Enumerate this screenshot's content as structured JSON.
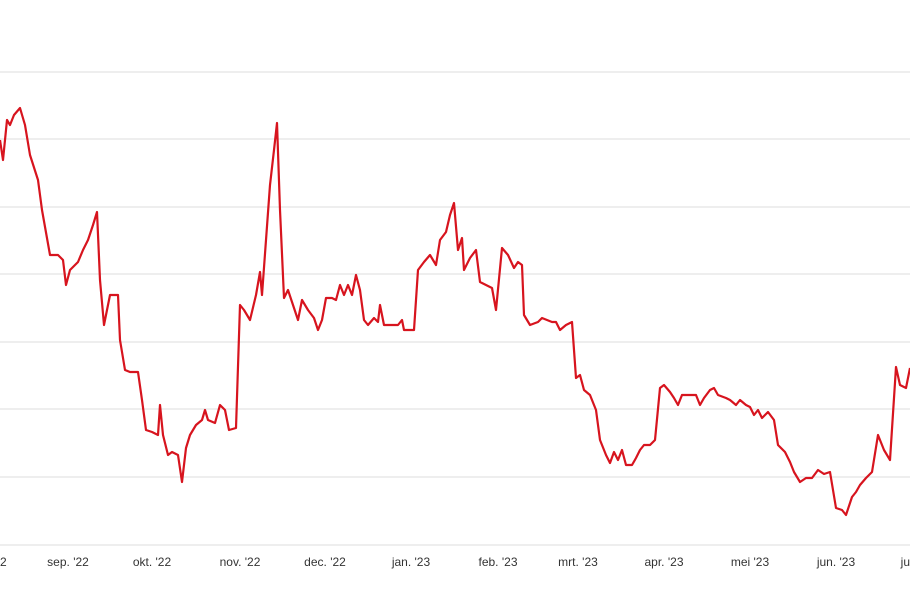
{
  "chart_data": {
    "type": "line",
    "x": [
      0,
      3,
      7,
      10,
      14,
      20,
      25,
      30,
      38,
      42,
      50,
      58,
      63,
      66,
      70,
      78,
      83,
      88,
      93,
      97,
      100,
      104,
      110,
      118,
      120,
      125,
      130,
      138,
      142,
      146,
      152,
      158,
      160,
      163,
      168,
      172,
      178,
      182,
      186,
      190,
      196,
      202,
      205,
      208,
      215,
      220,
      225,
      229,
      236,
      240,
      244,
      250,
      256,
      260,
      262,
      266,
      270,
      274,
      277,
      280,
      284,
      288,
      293,
      298,
      302,
      308,
      314,
      318,
      322,
      326,
      332,
      336,
      340,
      344,
      348,
      352,
      356,
      360,
      364,
      368,
      374,
      378,
      380,
      384,
      390,
      398,
      402,
      404,
      414,
      418,
      424,
      430,
      436,
      440,
      446,
      450,
      454,
      458,
      462,
      464,
      470,
      476,
      480,
      486,
      492,
      496,
      502,
      508,
      514,
      518,
      522,
      524,
      530,
      538,
      542,
      552,
      556,
      560,
      566,
      572,
      576,
      580,
      584,
      590,
      596,
      600,
      606,
      610,
      614,
      618,
      622,
      626,
      632,
      636,
      640,
      644,
      650,
      655,
      660,
      664,
      670,
      674,
      678,
      682,
      692,
      696,
      700,
      704,
      710,
      714,
      718,
      726,
      730,
      736,
      740,
      746,
      750,
      754,
      758,
      762,
      768,
      774,
      778,
      785,
      790,
      794,
      800,
      806,
      812,
      818,
      824,
      830,
      836,
      842,
      846,
      852,
      856,
      860,
      866,
      872,
      878,
      884,
      890,
      896,
      900,
      906,
      910
    ],
    "series": [
      {
        "color": "#d7141e",
        "values": [
          405,
          385,
          425,
          420,
          430,
          437,
          420,
          390,
          365,
          335,
          290,
          290,
          285,
          260,
          275,
          283,
          295,
          305,
          320,
          333,
          265,
          220,
          250,
          250,
          205,
          175,
          173,
          173,
          145,
          115,
          113,
          110,
          140,
          110,
          90,
          93,
          90,
          63,
          97,
          110,
          120,
          125,
          135,
          125,
          122,
          140,
          135,
          115,
          117,
          240,
          235,
          225,
          250,
          273,
          250,
          305,
          360,
          395,
          422,
          335,
          247,
          255,
          240,
          225,
          245,
          235,
          227,
          215,
          225,
          247,
          247,
          245,
          260,
          250,
          260,
          250,
          270,
          255,
          225,
          220,
          227,
          223,
          240,
          220,
          220,
          220,
          225,
          215,
          215,
          275,
          283,
          290,
          280,
          305,
          313,
          330,
          342,
          295,
          307,
          275,
          287,
          295,
          263,
          260,
          257,
          235,
          297,
          290,
          277,
          283,
          280,
          230,
          220,
          223,
          227,
          223,
          223,
          215,
          220,
          223,
          167,
          170,
          155,
          150,
          135,
          105,
          90,
          82,
          93,
          85,
          95,
          80,
          80,
          87,
          95,
          100,
          100,
          105,
          157,
          160,
          153,
          147,
          140,
          150,
          150,
          150,
          140,
          147,
          155,
          157,
          150,
          147,
          145,
          140,
          145,
          140,
          138,
          130,
          135,
          127,
          133,
          125,
          100,
          93,
          83,
          73,
          63,
          67,
          67,
          75,
          71,
          73,
          37,
          35,
          30,
          48,
          53,
          60,
          67,
          73,
          110,
          95,
          85,
          178,
          160,
          157,
          177
        ]
      }
    ],
    "xlim": [
      0,
      910
    ],
    "ylim": [
      0,
      545
    ],
    "xticks": [
      {
        "value": 0,
        "label": "2"
      },
      {
        "value": 68,
        "label": "sep. '22"
      },
      {
        "value": 152,
        "label": "okt. '22"
      },
      {
        "value": 240,
        "label": "nov. '22"
      },
      {
        "value": 325,
        "label": "dec. '22"
      },
      {
        "value": 411,
        "label": "jan. '23"
      },
      {
        "value": 498,
        "label": "feb. '23"
      },
      {
        "value": 578,
        "label": "mrt. '23"
      },
      {
        "value": 664,
        "label": "apr. '23"
      },
      {
        "value": 750,
        "label": "mei '23"
      },
      {
        "value": 836,
        "label": "jun. '23"
      },
      {
        "value": 910,
        "label": "ju"
      }
    ],
    "yticks": [
      0,
      68,
      136,
      203,
      271,
      338,
      406,
      473
    ],
    "grid": true
  }
}
